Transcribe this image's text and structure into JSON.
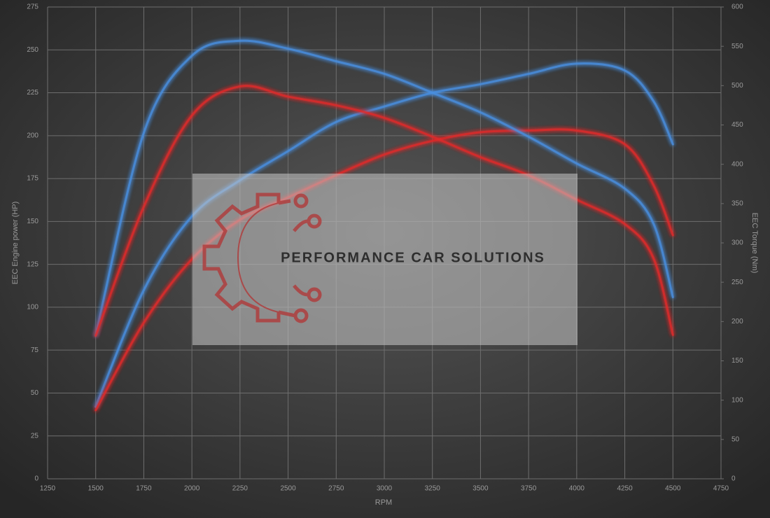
{
  "chart_data": {
    "type": "line",
    "x_label": "RPM",
    "y_label": "EEC Engine power (HP)",
    "y2_label": "EEC Torque (Nm)",
    "watermark": "PERFORMANCE CAR SOLUTIONS",
    "x": [
      1500,
      1750,
      2000,
      2250,
      2500,
      2750,
      3000,
      3250,
      3500,
      3750,
      4000,
      4250,
      4400,
      4500
    ],
    "series": [
      {
        "color": "#4a8fe0",
        "values": [
          42,
          110,
          153,
          174,
          191,
          208,
          217,
          225,
          230,
          236,
          242,
          238,
          220,
          195
        ]
      },
      {
        "color": "#e02a2a",
        "values": [
          40,
          91,
          128,
          151,
          164,
          177,
          189,
          197,
          202,
          203,
          203,
          195,
          171,
          142
        ]
      },
      {
        "color": "#4a8fe0",
        "axis": "y2",
        "values": [
          182,
          440,
          538,
          557,
          547,
          531,
          515,
          491,
          466,
          435,
          401,
          369,
          324,
          231
        ]
      },
      {
        "color": "#e02a2a",
        "axis": "y2",
        "values": [
          182,
          346,
          462,
          499,
          486,
          475,
          459,
          435,
          409,
          386,
          355,
          324,
          280,
          183
        ]
      }
    ],
    "xlim": [
      1250,
      4750
    ],
    "xticks": [
      1250,
      1500,
      1750,
      2000,
      2250,
      2500,
      2750,
      3000,
      3250,
      3500,
      3750,
      4000,
      4250,
      4500,
      4750
    ],
    "ylim": [
      0,
      275
    ],
    "yticks": [
      0,
      25,
      50,
      75,
      100,
      125,
      150,
      175,
      200,
      225,
      250,
      275
    ],
    "y2lim": [
      0,
      600
    ],
    "y2ticks": [
      0,
      50,
      100,
      150,
      200,
      250,
      300,
      350,
      400,
      450,
      500,
      550,
      600
    ],
    "grid": true
  }
}
